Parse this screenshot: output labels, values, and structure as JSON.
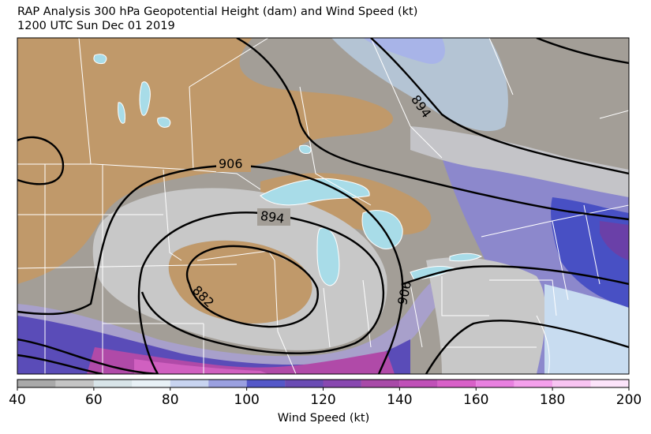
{
  "title_line1": "RAP Analysis 300 hPa Geopotential Height (dam) and Wind Speed (kt)",
  "title_line2": "1200 UTC Sun Dec 01 2019",
  "colorbar": {
    "label": "Wind Speed (kt)",
    "min": 40,
    "max": 200,
    "step": 10,
    "ticks": [
      40,
      60,
      80,
      100,
      120,
      140,
      160,
      180,
      200
    ],
    "colors": [
      "#a9a9a9",
      "#c4c4c4",
      "#d8e4e8",
      "#e8f1f6",
      "#c8d4f0",
      "#9aa0e0",
      "#5458c8",
      "#6a4cb4",
      "#8848b0",
      "#a84aa8",
      "#c050b8",
      "#d860c8",
      "#e880e0",
      "#f4a0ec",
      "#f8c4f2",
      "#fce4fa"
    ]
  },
  "contours": {
    "variable": "300 hPa Geopotential Height",
    "labels": [
      "906",
      "894",
      "882",
      "906",
      "894"
    ]
  },
  "colors": {
    "land_dry": "#c0996a",
    "lake": "#a8dce8",
    "boundary": "#ffffff",
    "contour": "#000000"
  }
}
